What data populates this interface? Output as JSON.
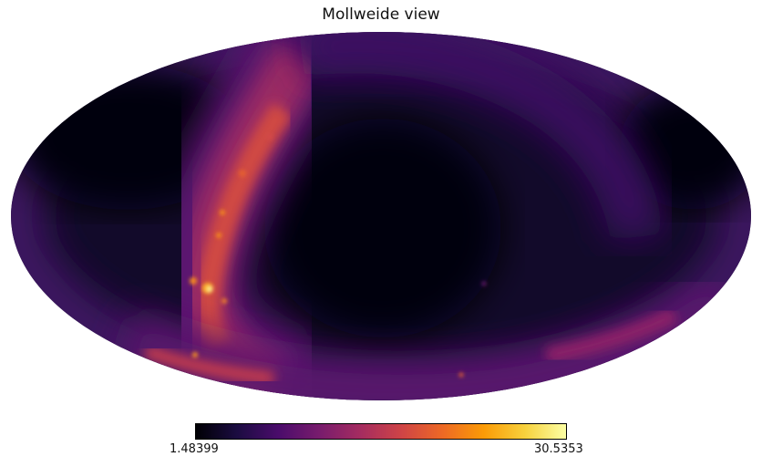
{
  "figure": {
    "title": "Mollweide view",
    "colormap": "inferno",
    "colorbar": {
      "min_label": "1.48399",
      "max_label": "30.5353"
    }
  }
}
